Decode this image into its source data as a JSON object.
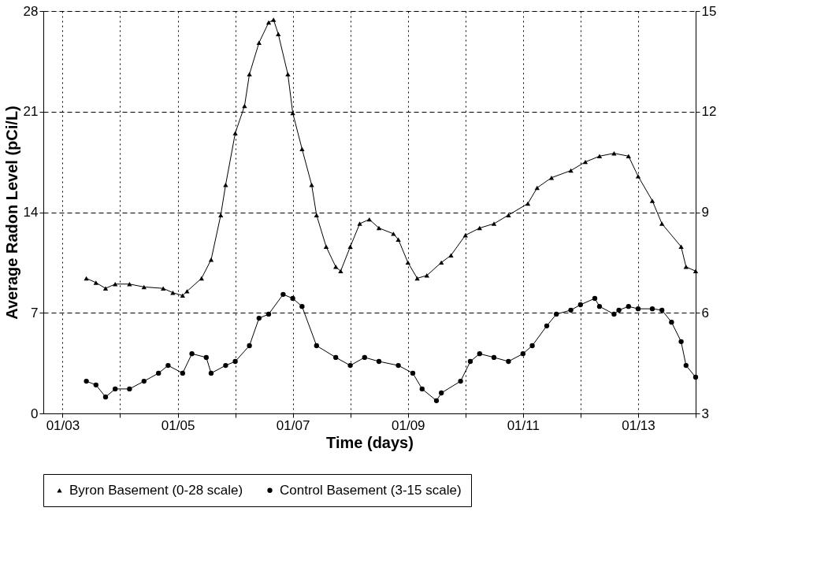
{
  "chart_data": {
    "type": "line",
    "xlabel": "Time (days)",
    "ylabel": "Average Radon Level (pCi/L)",
    "xlim": [
      "2002-09",
      "2014-01"
    ],
    "xticks": [
      {
        "value": "2003",
        "label": "01/03"
      },
      {
        "value": "2004",
        "label": null
      },
      {
        "value": "2005",
        "label": "01/05"
      },
      {
        "value": "2006",
        "label": null
      },
      {
        "value": "2007",
        "label": "01/07"
      },
      {
        "value": "2008",
        "label": null
      },
      {
        "value": "2009",
        "label": "01/09"
      },
      {
        "value": "2010",
        "label": null
      },
      {
        "value": "2011",
        "label": "01/11"
      },
      {
        "value": "2012",
        "label": null
      },
      {
        "value": "2013",
        "label": "01/13"
      },
      {
        "value": "2014",
        "label": null
      }
    ],
    "ylim": [
      0,
      28
    ],
    "yticks": [
      0,
      7,
      14,
      21,
      28
    ],
    "y2lim": [
      3,
      15
    ],
    "y2ticks": [
      3,
      6,
      9,
      12,
      15
    ],
    "grid": true,
    "legend": "bottom",
    "line_style": "solid",
    "series": [
      {
        "name": "Byron Basement (0-28 scale)",
        "color": "#000000",
        "marker": "triangle",
        "x": [
          "2003-06",
          "2003-08",
          "2003-10",
          "2003-12",
          "2004-03",
          "2004-06",
          "2004-10",
          "2004-12",
          "2005-02",
          "2005-03",
          "2005-06",
          "2005-08",
          "2005-10",
          "2005-11",
          "2006-01",
          "2006-03",
          "2006-04",
          "2006-06",
          "2006-08",
          "2006-09",
          "2006-10",
          "2006-12",
          "2007-01",
          "2007-03",
          "2007-05",
          "2007-06",
          "2007-08",
          "2007-10",
          "2007-11",
          "2008-01",
          "2008-03",
          "2008-05",
          "2008-07",
          "2008-10",
          "2008-11",
          "2009-01",
          "2009-03",
          "2009-05",
          "2009-08",
          "2009-10",
          "2010-01",
          "2010-04",
          "2010-07",
          "2010-10",
          "2011-02",
          "2011-04",
          "2011-07",
          "2011-11",
          "2012-02",
          "2012-05",
          "2012-08",
          "2012-11",
          "2013-01",
          "2013-04",
          "2013-06",
          "2013-10",
          "2013-11",
          "2014-01"
        ],
        "values": [
          9.4,
          9.1,
          8.7,
          9.0,
          9.0,
          8.8,
          8.7,
          8.4,
          8.2,
          8.5,
          9.4,
          10.7,
          13.8,
          15.9,
          19.5,
          21.4,
          23.6,
          25.8,
          27.2,
          27.4,
          26.4,
          23.6,
          20.9,
          18.4,
          15.9,
          13.8,
          11.6,
          10.2,
          9.9,
          11.6,
          13.2,
          13.5,
          12.9,
          12.5,
          12.1,
          10.5,
          9.4,
          9.6,
          10.5,
          11.0,
          12.4,
          12.9,
          13.2,
          13.8,
          14.6,
          15.7,
          16.4,
          16.9,
          17.5,
          17.9,
          18.1,
          17.9,
          16.5,
          14.8,
          13.2,
          11.6,
          10.2,
          9.9
        ]
      },
      {
        "name": "Control Basement (3-15 scale)",
        "color": "#000000",
        "marker": "circle",
        "axis": "y2",
        "x": [
          "2003-06",
          "2003-08",
          "2003-10",
          "2003-12",
          "2004-03",
          "2004-06",
          "2004-09",
          "2004-11",
          "2005-02",
          "2005-04",
          "2005-07",
          "2005-08",
          "2005-11",
          "2006-01",
          "2006-04",
          "2006-06",
          "2006-08",
          "2006-11",
          "2007-01",
          "2007-03",
          "2007-06",
          "2007-10",
          "2008-01",
          "2008-04",
          "2008-07",
          "2008-11",
          "2009-02",
          "2009-04",
          "2009-07",
          "2009-08",
          "2009-12",
          "2010-02",
          "2010-04",
          "2010-07",
          "2010-10",
          "2011-01",
          "2011-03",
          "2011-06",
          "2011-08",
          "2011-11",
          "2012-01",
          "2012-04",
          "2012-05",
          "2012-08",
          "2012-09",
          "2012-11",
          "2013-01",
          "2013-04",
          "2013-06",
          "2013-08",
          "2013-10",
          "2013-11",
          "2014-01"
        ],
        "values": [
          3.96,
          3.85,
          3.49,
          3.73,
          3.73,
          3.96,
          4.2,
          4.43,
          4.2,
          4.78,
          4.67,
          4.2,
          4.43,
          4.55,
          5.02,
          5.84,
          5.96,
          6.55,
          6.43,
          6.19,
          5.02,
          4.67,
          4.43,
          4.67,
          4.55,
          4.43,
          4.2,
          3.73,
          3.38,
          3.61,
          3.96,
          4.55,
          4.78,
          4.67,
          4.55,
          4.78,
          5.02,
          5.61,
          5.96,
          6.08,
          6.24,
          6.43,
          6.19,
          5.96,
          6.08,
          6.19,
          6.12,
          6.12,
          6.08,
          5.72,
          5.14,
          4.43,
          4.08
        ]
      }
    ]
  }
}
